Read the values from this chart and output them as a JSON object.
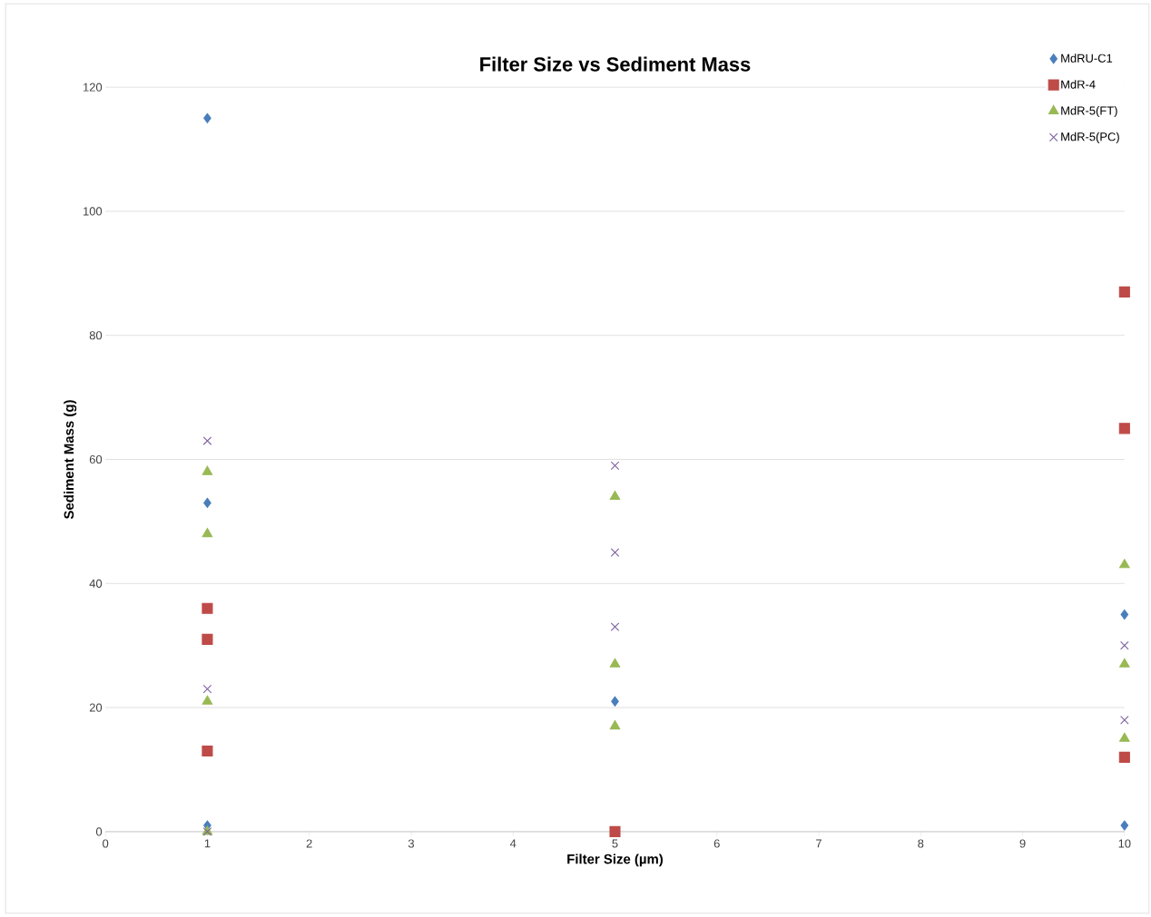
{
  "chart_data": {
    "type": "scatter",
    "title": "Filter Size vs Sediment Mass",
    "xlabel": "Filter Size (µm)",
    "ylabel": "Sediment Mass (g)",
    "xlim": [
      0,
      10
    ],
    "xticks": [
      0,
      1,
      2,
      3,
      4,
      5,
      6,
      7,
      8,
      9,
      10
    ],
    "ylim": [
      0,
      120
    ],
    "yticks": [
      0,
      20,
      40,
      60,
      80,
      100,
      120
    ],
    "grid": "y",
    "legend": "top right",
    "series": [
      {
        "name": "MdRU-C1",
        "color": "#4a7ebb",
        "marker": "diamond",
        "x": [
          1,
          1,
          1,
          5,
          10,
          10
        ],
        "values": [
          115,
          53,
          1,
          21,
          35,
          1
        ]
      },
      {
        "name": "MdR-4",
        "color": "#be4b48",
        "marker": "square",
        "x": [
          1,
          1,
          1,
          5,
          10,
          10,
          10
        ],
        "values": [
          36,
          31,
          13,
          0,
          87,
          65,
          12
        ]
      },
      {
        "name": "MdR-5(FT)",
        "color": "#98b954",
        "marker": "triangle",
        "x": [
          1,
          1,
          1,
          1,
          5,
          5,
          5,
          10,
          10,
          10
        ],
        "values": [
          58,
          48,
          21,
          0,
          54,
          27,
          17,
          43,
          27,
          15
        ]
      },
      {
        "name": "MdR-5(PC)",
        "color": "#7d60a0",
        "marker": "cross",
        "x": [
          1,
          1,
          1,
          5,
          5,
          5,
          10,
          10
        ],
        "values": [
          63,
          23,
          0,
          59,
          45,
          33,
          30,
          18
        ]
      }
    ]
  }
}
